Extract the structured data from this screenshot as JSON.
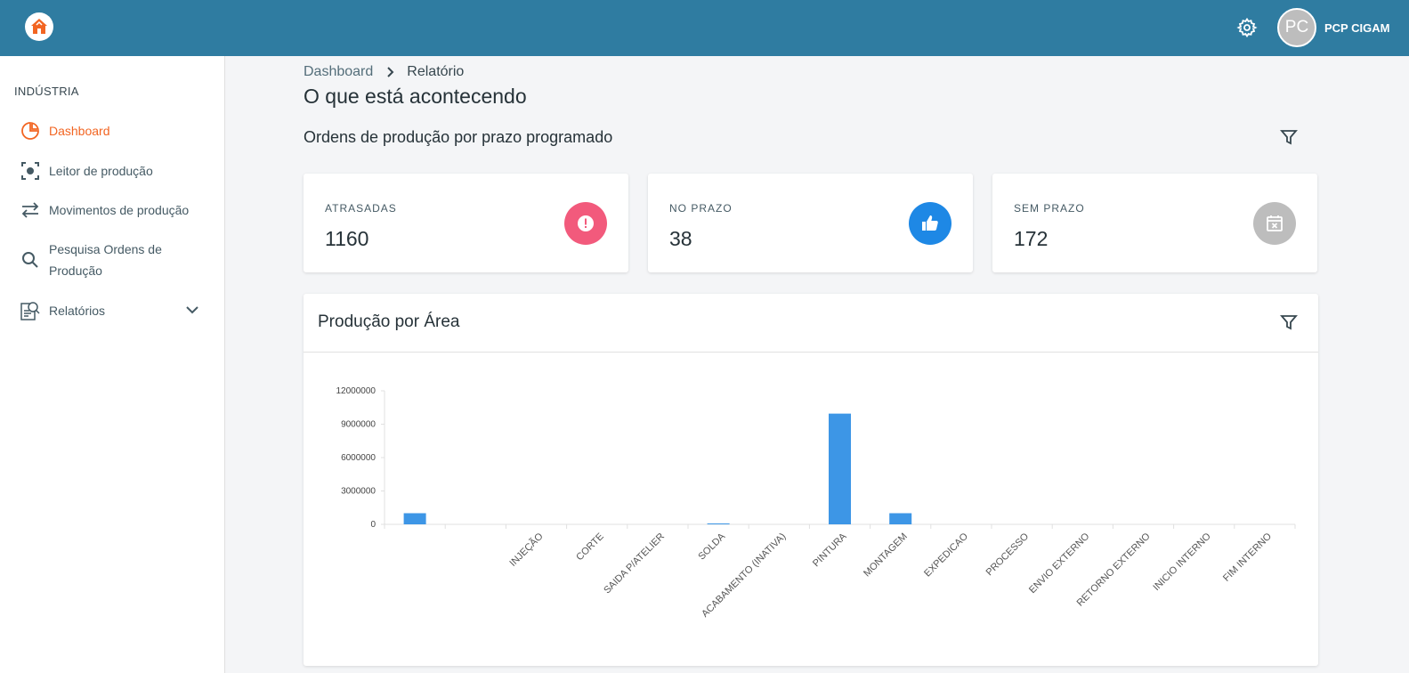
{
  "app": {
    "username": "PCP CIGAM",
    "avatar_initials": "PC"
  },
  "sidebar": {
    "section": "INDÚSTRIA",
    "items": [
      {
        "label": "Dashboard",
        "icon": "pie-chart-icon",
        "active": true
      },
      {
        "label": "Leitor de produção",
        "icon": "scan-icon"
      },
      {
        "label": "Movimentos de produção",
        "icon": "swap-arrows-icon"
      },
      {
        "label": "Pesquisa Ordens de Produção",
        "icon": "search-icon"
      },
      {
        "label": "Relatórios",
        "icon": "report-icon"
      }
    ]
  },
  "breadcrumb": {
    "root": "Dashboard",
    "current": "Relatório"
  },
  "page": {
    "title": "O que está acontecendo",
    "section_title": "Ordens de produção por prazo programado"
  },
  "cards": [
    {
      "label": "ATRASADAS",
      "value": "1160",
      "color": "#f25a7c",
      "icon": "alert-icon"
    },
    {
      "label": "NO PRAZO",
      "value": "38",
      "color": "#1e88e5",
      "icon": "thumbs-up-icon"
    },
    {
      "label": "SEM PRAZO",
      "value": "172",
      "color": "#bdbdbd",
      "icon": "calendar-x-icon"
    }
  ],
  "panel": {
    "title": "Produção por Área"
  },
  "colors": {
    "topbar": "#2f7ca1",
    "accent": "#f26522",
    "bar": "#3d96e6"
  },
  "chart_data": {
    "type": "bar",
    "categories": [
      "",
      "",
      "INJEÇÃO",
      "CORTE",
      "SAIDA P/ATELIER",
      "SOLDA",
      "ACABAMENTO (INATIVA)",
      "PINTURA",
      "MONTAGEM",
      "EXPEDICAO",
      "PROCESSO",
      "ENVIO EXTERNO",
      "RETORNO EXTERNO",
      "INICIO INTERNO",
      "FIM INTERNO"
    ],
    "values": [
      1000000,
      0,
      0,
      0,
      0,
      50000,
      0,
      9950000,
      1000000,
      0,
      0,
      0,
      0,
      0,
      0
    ],
    "yticks": [
      "0",
      "3000000",
      "6000000",
      "9000000",
      "12000000"
    ],
    "ylim": [
      0,
      12000000
    ],
    "grid": false
  }
}
